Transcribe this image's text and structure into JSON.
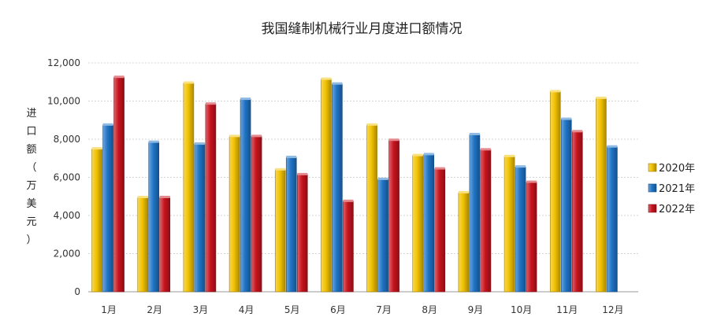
{
  "chart_data": {
    "type": "bar",
    "title": "我国缝制机械行业月度进口额情况",
    "xlabel": "",
    "ylabel": "进口额（万美元）",
    "ylabel_chars": [
      "进",
      "口",
      "额",
      "（",
      "万",
      "美",
      "元",
      "）"
    ],
    "ylim": [
      0,
      12000
    ],
    "yticks": [
      0,
      2000,
      4000,
      6000,
      8000,
      10000,
      12000
    ],
    "ytick_labels": [
      "0",
      "2,000",
      "4,000",
      "6,000",
      "8,000",
      "10,000",
      "12,000"
    ],
    "grid": true,
    "legend_position": "right",
    "categories": [
      "1月",
      "2月",
      "3月",
      "4月",
      "5月",
      "6月",
      "7月",
      "8月",
      "9月",
      "10月",
      "11月",
      "12月"
    ],
    "series": [
      {
        "name": "2020年",
        "color": "#f2c200",
        "values": [
          7500,
          4950,
          10950,
          8150,
          6400,
          11150,
          8750,
          7150,
          5200,
          7100,
          10500,
          10150
        ]
      },
      {
        "name": "2021年",
        "color": "#1f74c6",
        "values": [
          8750,
          7850,
          7750,
          10100,
          7050,
          10900,
          5900,
          7200,
          8250,
          6550,
          9050,
          7600
        ]
      },
      {
        "name": "2022年",
        "color": "#c8141e",
        "values": [
          11250,
          4950,
          9850,
          8150,
          6150,
          4750,
          7950,
          6450,
          7450,
          5750,
          8400,
          null
        ]
      }
    ]
  }
}
